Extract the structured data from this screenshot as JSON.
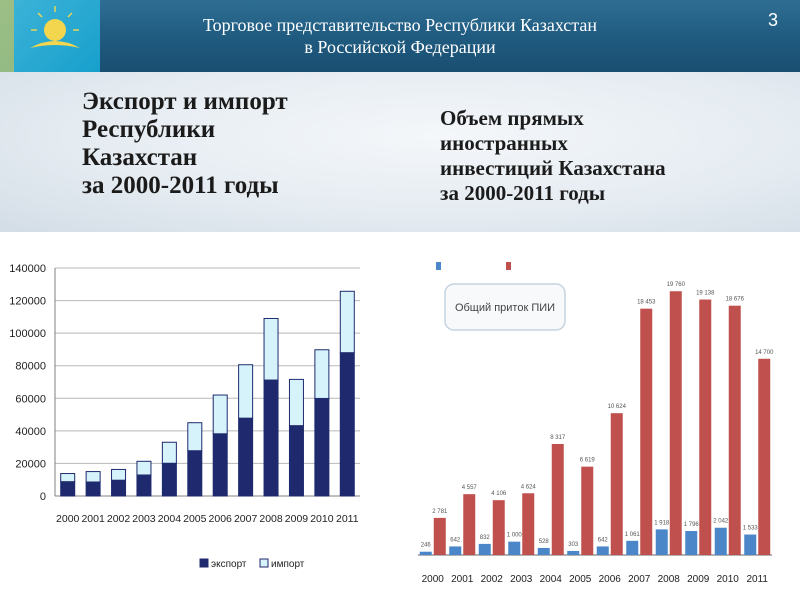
{
  "header": {
    "title": "Торговое представительство Республики Казахстан\nв Российской Федерации",
    "page_number": "3"
  },
  "banner": {
    "left_title": "Экспорт и импорт\nРеспублики\nКазахстан\nза 2000-2011 годы",
    "right_title": "Объем прямых\nиностранных\nинвестиций Казахстана\nза 2000-2011 годы"
  },
  "chart_data": [
    {
      "type": "bar",
      "stacked": true,
      "categories": [
        "2000",
        "2001",
        "2002",
        "2003",
        "2004",
        "2005",
        "2006",
        "2007",
        "2008",
        "2009",
        "2010",
        "2011"
      ],
      "series": [
        {
          "name": "экспорт",
          "color": "#1f2a6e",
          "values": [
            8800,
            8600,
            9700,
            12900,
            20100,
            27800,
            38200,
            47800,
            71200,
            43200,
            59900,
            88000
          ]
        },
        {
          "name": "импорт",
          "color": "#d6f3fb",
          "values": [
            5000,
            6400,
            6600,
            8400,
            12900,
            17200,
            23800,
            32800,
            37800,
            28400,
            29900,
            37700
          ]
        }
      ],
      "y_ticks": [
        "0",
        "20000",
        "40000",
        "60000",
        "80000",
        "100000",
        "120000",
        "140000"
      ],
      "ylim": [
        0,
        140000
      ],
      "grid": true,
      "legend": "bottom"
    },
    {
      "type": "bar",
      "categories": [
        "2000",
        "2001",
        "2002",
        "2003",
        "2004",
        "2005",
        "2006",
        "2007",
        "2008",
        "2009",
        "2010",
        "2011"
      ],
      "series": [
        {
          "color": "#4a86c8",
          "values": [
            246,
            642,
            832,
            1000,
            528,
            303,
            642,
            1061,
            1918,
            1796,
            2042,
            1533
          ],
          "labels": [
            "246",
            "642",
            "832",
            "1 000",
            "528",
            "303",
            "642",
            "1 061",
            "1 918",
            "1 796",
            "2 042",
            "1 533"
          ]
        },
        {
          "color": "#c0504d",
          "values": [
            2781,
            4557,
            4106,
            4624,
            8317,
            6619,
            10624,
            18453,
            19760,
            19138,
            18676,
            14700
          ],
          "labels": [
            "2 781",
            "4 557",
            "4 106",
            "4 624",
            "8 317",
            "6 619",
            "10 624",
            "18 453",
            "19 760",
            "19 138",
            "18 676",
            "14 700"
          ]
        }
      ],
      "annotation": "Общий приток ПИИ",
      "ylim": [
        0,
        21500
      ],
      "grid": false
    }
  ]
}
